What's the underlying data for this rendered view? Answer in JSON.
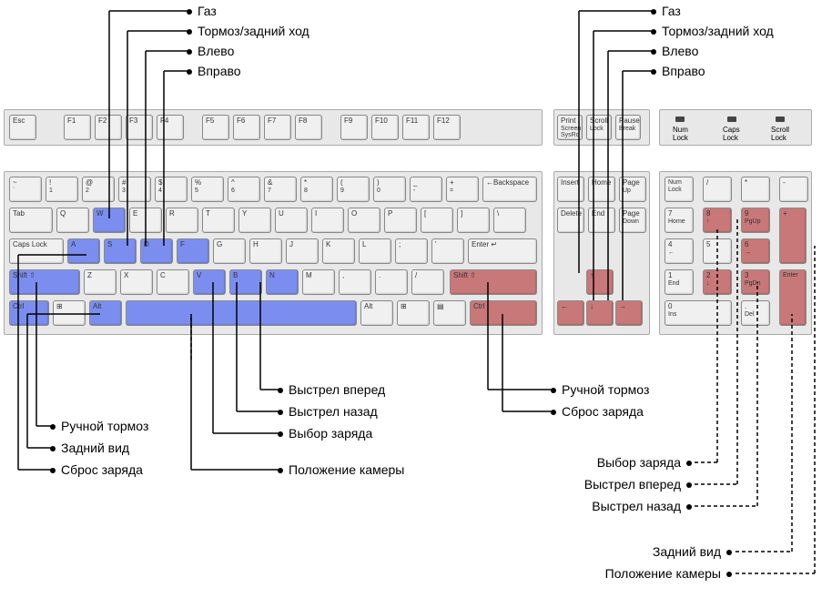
{
  "colors": {
    "key_bg": "#f0f0f0",
    "key_border": "#888888",
    "blue": "#7b8ef0",
    "red": "#c87878",
    "line": "#000000"
  },
  "typography": {
    "label_fontsize": 14,
    "key_fontsize": 8
  },
  "callouts_top_left": [
    {
      "text": "Газ",
      "key": "W"
    },
    {
      "text": "Тормоз/задний ход",
      "key": "S"
    },
    {
      "text": "Влево",
      "key": "A"
    },
    {
      "text": "Вправо",
      "key": "D"
    }
  ],
  "callouts_top_right": [
    {
      "text": "Газ"
    },
    {
      "text": "Тормоз/задний ход"
    },
    {
      "text": "Влево"
    },
    {
      "text": "Вправо"
    }
  ],
  "callouts_bottom_left": [
    {
      "text": "Ручной тормоз"
    },
    {
      "text": "Задний вид"
    },
    {
      "text": "Сброс заряда"
    }
  ],
  "callouts_bottom_mid": [
    {
      "text": "Выстрел вперед"
    },
    {
      "text": "Выстрел назад"
    },
    {
      "text": "Выбор заряда"
    },
    {
      "text": "Положение камеры"
    }
  ],
  "callouts_bottom_right1": [
    {
      "text": "Ручной тормоз"
    },
    {
      "text": "Сброс заряда"
    }
  ],
  "callouts_bottom_right2": [
    {
      "text": "Выбор заряда"
    },
    {
      "text": "Выстрел вперед"
    },
    {
      "text": "Выстрел назад"
    }
  ],
  "callouts_bottom_right3": [
    {
      "text": "Задний вид"
    },
    {
      "text": "Положение камеры"
    }
  ],
  "leds": [
    "Num Lock",
    "Caps Lock",
    "Scroll Lock"
  ],
  "highlighted_blue": [
    "W",
    "A",
    "S",
    "D",
    "F",
    "V",
    "B",
    "N",
    "Shift_L",
    "Ctrl_L",
    "Alt_L",
    "Space"
  ],
  "highlighted_red": [
    "Shift_R",
    "Ctrl_R",
    "Up",
    "Down",
    "Left",
    "Right",
    "Num8",
    "Num2",
    "Num6",
    "Num9",
    "Num3",
    "NumPlus",
    "NumEnter"
  ],
  "keys": {
    "esc": "Esc",
    "frow": [
      "F1",
      "F2",
      "F3",
      "F4",
      "F5",
      "F6",
      "F7",
      "F8",
      "F9",
      "F10",
      "F11",
      "F12"
    ],
    "sys": [
      [
        "Print",
        "Screen",
        "SysRq"
      ],
      [
        "Scroll",
        "Lock"
      ],
      [
        "Pause",
        "Break"
      ]
    ],
    "numrow": [
      [
        "~",
        "`"
      ],
      [
        "!",
        "1"
      ],
      [
        "@",
        "2"
      ],
      [
        "#",
        "3"
      ],
      [
        "$",
        "4"
      ],
      [
        "%",
        "5"
      ],
      [
        "^",
        "6"
      ],
      [
        "&",
        "7"
      ],
      [
        "*",
        "8"
      ],
      [
        "(",
        "9"
      ],
      [
        ")",
        "0"
      ],
      [
        "_",
        "-"
      ],
      [
        "+",
        "="
      ]
    ],
    "backspace": "←Backspace",
    "tab": "Tab",
    "qrow": [
      "Q",
      "W",
      "E",
      "R",
      "T",
      "Y",
      "U",
      "I",
      "O",
      "P",
      "[",
      "]",
      "\\"
    ],
    "caps": "Caps Lock",
    "arow": [
      "A",
      "S",
      "D",
      "F",
      "G",
      "H",
      "J",
      "K",
      "L",
      ";",
      "'"
    ],
    "enter": "Enter ↵",
    "shift_l": "Shift ⇧",
    "zrow": [
      "Z",
      "X",
      "C",
      "V",
      "B",
      "N",
      "M",
      ",",
      ".",
      "/"
    ],
    "shift_r": "Shift ⇧",
    "ctrl_l": "Ctrl",
    "win_l": "⊞",
    "alt_l": "Alt",
    "space": "",
    "alt_r": "Alt",
    "win_r": "⊞",
    "menu": "▤",
    "ctrl_r": "Ctrl",
    "nav1": [
      "Insert",
      "Home",
      [
        "Page",
        "Up"
      ]
    ],
    "nav2": [
      "Delete",
      "End",
      [
        "Page",
        "Down"
      ]
    ],
    "arrows": [
      "↑",
      "←",
      "↓",
      "→"
    ],
    "numlock": "Num Lock",
    "numtop": [
      "/",
      "*",
      "-"
    ],
    "num789": [
      [
        "7",
        "Home"
      ],
      [
        "8",
        "↑"
      ],
      [
        "9",
        "PgUp"
      ]
    ],
    "numplus": "+",
    "num456": [
      [
        "4",
        "←"
      ],
      [
        "5",
        ""
      ],
      [
        "6",
        "→"
      ]
    ],
    "num123": [
      [
        "1",
        "End"
      ],
      [
        "2",
        "↓"
      ],
      [
        "3",
        "PgDn"
      ]
    ],
    "numenter": "Enter",
    "num0": [
      "0",
      "Ins"
    ],
    "numdot": [
      ".",
      "Del"
    ]
  }
}
